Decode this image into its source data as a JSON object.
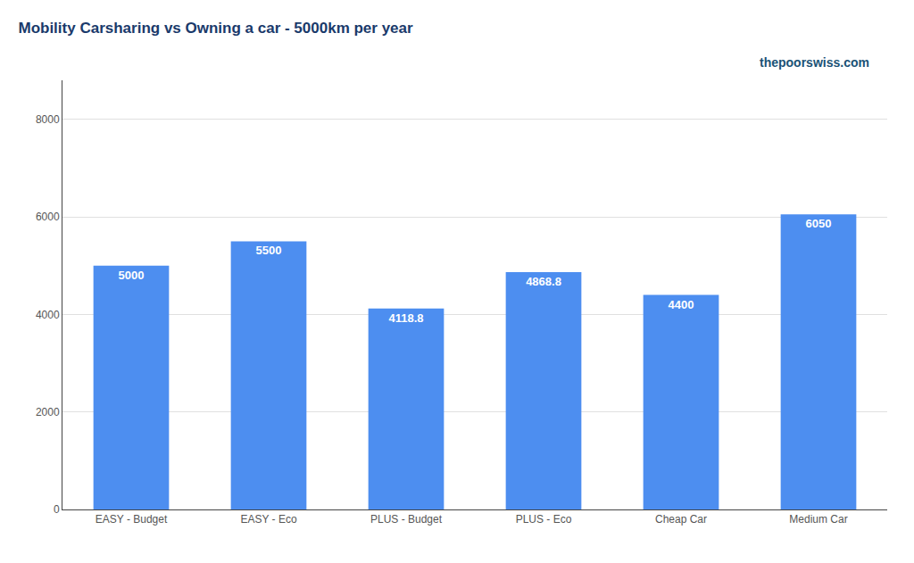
{
  "chart_data": {
    "type": "bar",
    "title": "Mobility Carsharing vs Owning a car - 5000km per year",
    "annotations": [
      "thepoorswiss.com"
    ],
    "categories": [
      "EASY - Budget",
      "EASY - Eco",
      "PLUS - Budget",
      "PLUS - Eco",
      "Cheap Car",
      "Medium Car"
    ],
    "values": [
      5000,
      5500,
      4118.8,
      4868.8,
      4400,
      6050
    ],
    "color": "#4d8ef0",
    "ylim": [
      0,
      8800
    ],
    "yticks": [
      0,
      2000,
      4000,
      6000,
      8000
    ],
    "grid": true,
    "data_labels": true
  }
}
